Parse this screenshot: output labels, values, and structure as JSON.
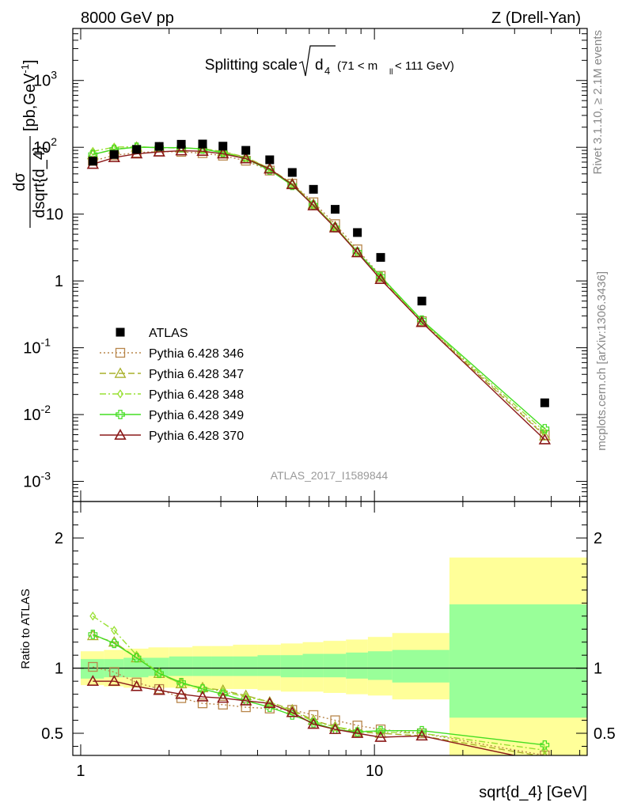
{
  "header": {
    "left_label": "8000 GeV pp",
    "right_label": "Z (Drell-Yan)"
  },
  "side_labels": {
    "rivet": "Rivet 3.1.10, ≥ 2.1M events",
    "mcplots": "mcplots.cern.ch [arXiv:1306.3436]"
  },
  "chart_data": {
    "type": "scatter",
    "title_main": "Splitting scale",
    "title_sqrt_body": "d",
    "title_sqrt_sub": "4",
    "title_cut_open": "(71 < m",
    "title_cut_sub": "ll",
    "title_cut_close": " < 111 GeV)",
    "watermark": "ATLAS_2017_I1589844",
    "xlabel": "sqrt{d_4} [GeV]",
    "ylabel_top": "dσ",
    "ylabel_bottom": "dsqrt{d_4}",
    "ylabel_unit": "[pb,GeV",
    "ylabel_unit_sup": "-1",
    "ylabel_unit_close": "]",
    "ratio_ylabel": "Ratio to ATLAS",
    "x_scale": "log",
    "xlim": [
      0.94,
      53
    ],
    "ylim": [
      0.0005,
      6000
    ],
    "y_scale": "log",
    "ratio_ylim": [
      0.33,
      2.28
    ],
    "x_ticks": [
      {
        "v": 1,
        "label": "1"
      },
      {
        "v": 10,
        "label": "10"
      }
    ],
    "y_ticks": [
      {
        "v": 0.001,
        "base": "10",
        "exp": "-3"
      },
      {
        "v": 0.01,
        "base": "10",
        "exp": "-2"
      },
      {
        "v": 0.1,
        "base": "10",
        "exp": "-1"
      },
      {
        "v": 1,
        "base": "1",
        "exp": ""
      },
      {
        "v": 10,
        "base": "10",
        "exp": ""
      },
      {
        "v": 100,
        "base": "10",
        "exp": "2"
      },
      {
        "v": 1000,
        "base": "10",
        "exp": "3"
      }
    ],
    "ratio_ticks": [
      {
        "v": 0.5,
        "label": "0.5"
      },
      {
        "v": 1,
        "label": "1"
      },
      {
        "v": 2,
        "label": "2"
      }
    ],
    "bins": [
      [
        1.0,
        1.2
      ],
      [
        1.2,
        1.4
      ],
      [
        1.4,
        1.7
      ],
      [
        1.7,
        2.0
      ],
      [
        2.0,
        2.4
      ],
      [
        2.4,
        2.8
      ],
      [
        2.8,
        3.3
      ],
      [
        3.3,
        4.0
      ],
      [
        4.0,
        4.8
      ],
      [
        4.8,
        5.7
      ],
      [
        5.7,
        6.7
      ],
      [
        6.7,
        8.0
      ],
      [
        8.0,
        9.5
      ],
      [
        9.5,
        11.5
      ],
      [
        11.5,
        18.0
      ],
      [
        18.0,
        53.0
      ]
    ],
    "x": [
      1.1,
      1.3,
      1.55,
      1.85,
      2.2,
      2.6,
      3.05,
      3.65,
      4.4,
      5.25,
      6.2,
      7.35,
      8.75,
      10.5,
      14.5,
      38
    ],
    "data": {
      "name": "ATLAS",
      "color": "#000000",
      "values": [
        62,
        78,
        93,
        103,
        111,
        112,
        104,
        90,
        65,
        42,
        23.5,
        11.8,
        5.3,
        2.25,
        0.5,
        0.015
      ]
    },
    "bands": {
      "inner": [
        [
          0.92,
          1.07
        ],
        [
          0.93,
          1.07
        ],
        [
          0.93,
          1.08
        ],
        [
          0.94,
          1.08
        ],
        [
          0.94,
          1.09
        ],
        [
          0.94,
          1.09
        ],
        [
          0.94,
          1.09
        ],
        [
          0.94,
          1.09
        ],
        [
          0.94,
          1.1
        ],
        [
          0.93,
          1.1
        ],
        [
          0.93,
          1.11
        ],
        [
          0.93,
          1.11
        ],
        [
          0.92,
          1.12
        ],
        [
          0.91,
          1.13
        ],
        [
          0.89,
          1.14
        ],
        [
          0.62,
          1.49
        ]
      ],
      "outer": [
        [
          0.87,
          1.13
        ],
        [
          0.86,
          1.14
        ],
        [
          0.85,
          1.15
        ],
        [
          0.85,
          1.16
        ],
        [
          0.85,
          1.16
        ],
        [
          0.84,
          1.17
        ],
        [
          0.84,
          1.17
        ],
        [
          0.84,
          1.18
        ],
        [
          0.83,
          1.18
        ],
        [
          0.82,
          1.19
        ],
        [
          0.82,
          1.2
        ],
        [
          0.81,
          1.21
        ],
        [
          0.8,
          1.22
        ],
        [
          0.79,
          1.24
        ],
        [
          0.76,
          1.27
        ],
        [
          0.3,
          1.85
        ]
      ],
      "inner_color": "#99ff99",
      "outer_color": "#ffff99"
    },
    "series": [
      {
        "name": "Pythia 6.428 346",
        "color": "#b8864b",
        "marker": "square",
        "dash": "2,3",
        "ratio": [
          1.01,
          0.97,
          0.89,
          0.84,
          0.77,
          0.73,
          0.72,
          0.7,
          0.69,
          0.68,
          0.64,
          0.6,
          0.56,
          0.53,
          0.5,
          0.33
        ]
      },
      {
        "name": "Pythia 6.428 347",
        "color": "#a8b02a",
        "marker": "triangle",
        "dash": "8,4",
        "ratio": [
          1.25,
          1.2,
          1.08,
          0.96,
          0.88,
          0.85,
          0.83,
          0.79,
          0.74,
          0.68,
          0.6,
          0.55,
          0.51,
          0.5,
          0.48,
          0.32
        ]
      },
      {
        "name": "Pythia 6.428 348",
        "color": "#99e033",
        "marker": "diamond",
        "dash": "8,3,2,3",
        "ratio": [
          1.4,
          1.29,
          1.1,
          0.96,
          0.88,
          0.85,
          0.82,
          0.78,
          0.74,
          0.67,
          0.59,
          0.55,
          0.52,
          0.51,
          0.5,
          0.37
        ]
      },
      {
        "name": "Pythia 6.428 349",
        "color": "#44dd22",
        "marker": "cross",
        "dash": "",
        "ratio": [
          1.26,
          1.19,
          1.08,
          0.96,
          0.89,
          0.84,
          0.8,
          0.75,
          0.7,
          0.64,
          0.58,
          0.53,
          0.51,
          0.52,
          0.52,
          0.41
        ]
      },
      {
        "name": "Pythia 6.428 370",
        "color": "#8b1a1a",
        "marker": "open-triangle",
        "dash": "",
        "ratio": [
          0.9,
          0.9,
          0.86,
          0.83,
          0.8,
          0.78,
          0.77,
          0.75,
          0.73,
          0.66,
          0.57,
          0.53,
          0.5,
          0.47,
          0.48,
          0.28
        ]
      }
    ],
    "legend": {
      "entries": [
        "ATLAS",
        "Pythia 6.428 346",
        "Pythia 6.428 347",
        "Pythia 6.428 348",
        "Pythia 6.428 349",
        "Pythia 6.428 370"
      ]
    }
  }
}
